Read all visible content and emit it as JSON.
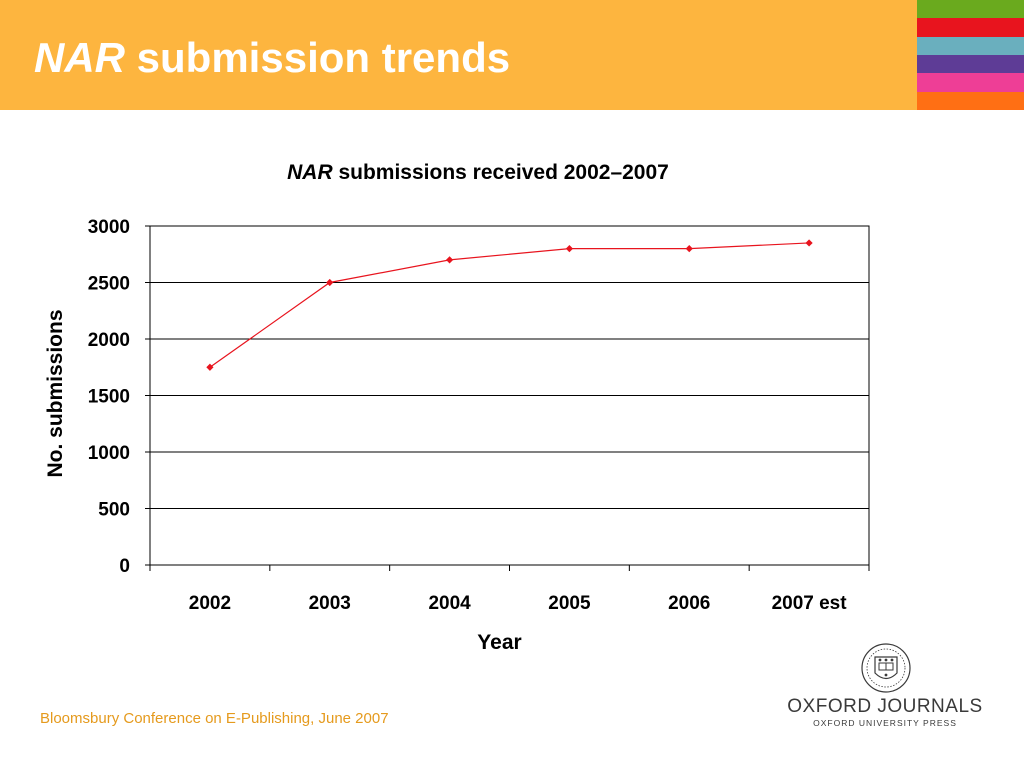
{
  "slide": {
    "title_em": "NAR",
    "title_rest": "submission trends",
    "footer": "Bloomsbury Conference on E-Publishing, June 2007",
    "logo": {
      "wordmark": "OXFORD JOURNALS",
      "subtitle": "OXFORD UNIVERSITY PRESS"
    }
  },
  "colors": {
    "header": "#FDB53F",
    "stripes": [
      "#6AAA1E",
      "#E8141E",
      "#6AAFBE",
      "#5E3C96",
      "#EE3E96",
      "#FF6F14"
    ],
    "series_line": "#E8141E",
    "footer_text": "#E59A1D"
  },
  "chart_data": {
    "type": "line",
    "title_em": "NAR",
    "title_rest": "submissions received 2002–2007",
    "xlabel": "Year",
    "ylabel": "No. submissions",
    "categories": [
      "2002",
      "2003",
      "2004",
      "2005",
      "2006",
      "2007 est"
    ],
    "series": [
      {
        "values": [
          1750,
          2500,
          2700,
          2800,
          2800,
          2850
        ]
      }
    ],
    "ylim": [
      0,
      3000
    ],
    "yticks": [
      "0",
      "500",
      "1000",
      "1500",
      "2000",
      "2500",
      "3000"
    ],
    "grid": true,
    "legend": "none",
    "marker": "diamond"
  }
}
